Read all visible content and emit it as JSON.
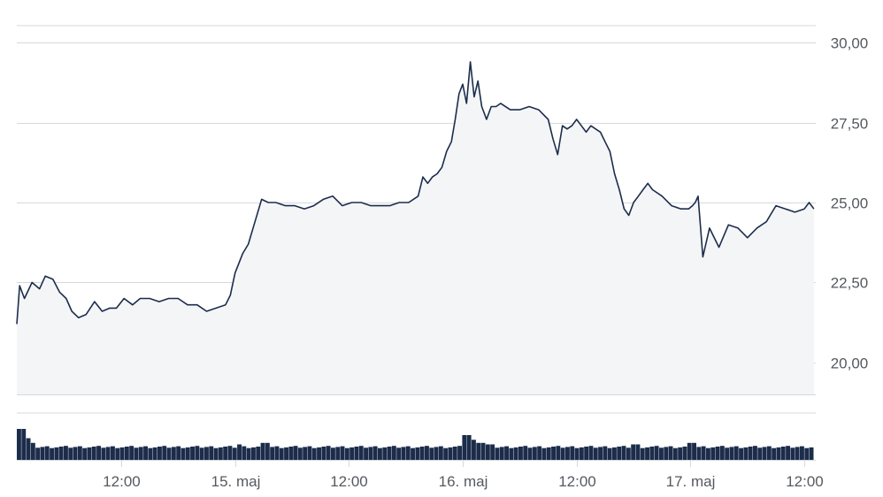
{
  "chart_data": {
    "type": "area",
    "title": "",
    "xlabel": "",
    "ylabel": "",
    "ylim": [
      19.0,
      31.0
    ],
    "y_ticks": [
      "20,00",
      "22,50",
      "25,00",
      "27,50",
      "30,00"
    ],
    "y_tick_values": [
      20.0,
      22.5,
      25.0,
      27.5,
      30.0
    ],
    "x_ticks": [
      "12:00",
      "15. maj",
      "12:00",
      "16. maj",
      "12:00",
      "17. maj",
      "12:00"
    ],
    "x_tick_hours": [
      12,
      24,
      36,
      48,
      60,
      72,
      84
    ],
    "xlim_hours": [
      1.0,
      85.2
    ],
    "grid": true,
    "legend": "none",
    "colors": {
      "line": "#1c2d4b",
      "area": "#f4f5f7",
      "grid": "#d6d8dc",
      "volume": "#1c2d4b"
    },
    "price_series": {
      "x_hours": [
        1.0,
        1.3,
        1.8,
        2.6,
        3.4,
        4.0,
        4.8,
        5.5,
        6.2,
        6.8,
        7.5,
        8.3,
        9.2,
        10.0,
        10.8,
        11.5,
        12.3,
        13.2,
        14.0,
        15.0,
        16.0,
        17.0,
        18.0,
        19.0,
        20.0,
        21.0,
        22.0,
        23.0,
        23.5,
        24.0,
        24.4,
        24.8,
        25.4,
        26.0,
        26.8,
        27.5,
        28.3,
        29.3,
        30.3,
        31.3,
        32.3,
        33.3,
        34.3,
        35.3,
        36.3,
        37.3,
        38.3,
        39.3,
        40.3,
        41.3,
        42.3,
        43.3,
        43.8,
        44.3,
        44.8,
        45.3,
        45.8,
        46.3,
        46.8,
        47.2,
        47.6,
        48.0,
        48.4,
        48.8,
        49.2,
        49.6,
        50.0,
        50.5,
        51.0,
        51.5,
        52.0,
        53.0,
        54.0,
        55.0,
        56.0,
        57.0,
        57.5,
        58.0,
        58.5,
        59.0,
        59.5,
        60.0,
        60.5,
        61.0,
        61.5,
        62.0,
        62.5,
        63.0,
        63.5,
        64.0,
        64.5,
        65.0,
        65.5,
        66.0,
        66.5,
        67.0,
        67.5,
        68.0,
        69.0,
        70.0,
        71.0,
        71.8,
        72.2,
        72.5,
        72.8,
        73.3,
        74.0,
        75.0,
        76.0,
        77.0,
        78.0,
        79.0,
        80.0,
        81.0,
        82.0,
        83.0,
        84.0,
        84.5,
        85.0
      ],
      "y_values": [
        21.2,
        22.4,
        22.0,
        22.5,
        22.3,
        22.7,
        22.6,
        22.2,
        22.0,
        21.6,
        21.4,
        21.5,
        21.9,
        21.6,
        21.7,
        21.7,
        22.0,
        21.8,
        22.0,
        22.0,
        21.9,
        22.0,
        22.0,
        21.8,
        21.8,
        21.6,
        21.7,
        21.8,
        22.1,
        22.8,
        23.1,
        23.4,
        23.7,
        24.3,
        25.1,
        25.0,
        25.0,
        24.9,
        24.9,
        24.8,
        24.9,
        25.1,
        25.2,
        24.9,
        25.0,
        25.0,
        24.9,
        24.9,
        24.9,
        25.0,
        25.0,
        25.2,
        25.8,
        25.6,
        25.8,
        25.9,
        26.1,
        26.6,
        26.9,
        27.6,
        28.4,
        28.7,
        28.1,
        29.4,
        28.3,
        28.8,
        28.0,
        27.6,
        28.0,
        28.0,
        28.1,
        27.9,
        27.9,
        28.0,
        27.9,
        27.6,
        27.0,
        26.5,
        27.4,
        27.3,
        27.4,
        27.6,
        27.4,
        27.2,
        27.4,
        27.3,
        27.2,
        26.9,
        26.6,
        25.9,
        25.4,
        24.8,
        24.6,
        25.0,
        25.2,
        25.4,
        25.6,
        25.4,
        25.2,
        24.9,
        24.8,
        24.8,
        24.9,
        25.0,
        25.2,
        23.3,
        24.2,
        23.6,
        24.3,
        24.2,
        23.9,
        24.2,
        24.4,
        24.9,
        24.8,
        24.7,
        24.8,
        25.0,
        24.8
      ]
    },
    "volume_series": {
      "x_start_hours": 1.0,
      "x_end_hours": 85.0,
      "bar_count": 170,
      "base_level": 0.38,
      "spikes": [
        {
          "x_hour": 1.1,
          "level": 1.0
        },
        {
          "x_hour": 1.6,
          "level": 0.7
        },
        {
          "x_hour": 2.2,
          "level": 0.55
        },
        {
          "x_hour": 24.2,
          "level": 0.5
        },
        {
          "x_hour": 27.0,
          "level": 0.55
        },
        {
          "x_hour": 48.0,
          "level": 0.8
        },
        {
          "x_hour": 48.5,
          "level": 0.65
        },
        {
          "x_hour": 49.6,
          "level": 0.55
        },
        {
          "x_hour": 50.5,
          "level": 0.5
        },
        {
          "x_hour": 66.0,
          "level": 0.5
        },
        {
          "x_hour": 72.0,
          "level": 0.55
        }
      ]
    }
  }
}
